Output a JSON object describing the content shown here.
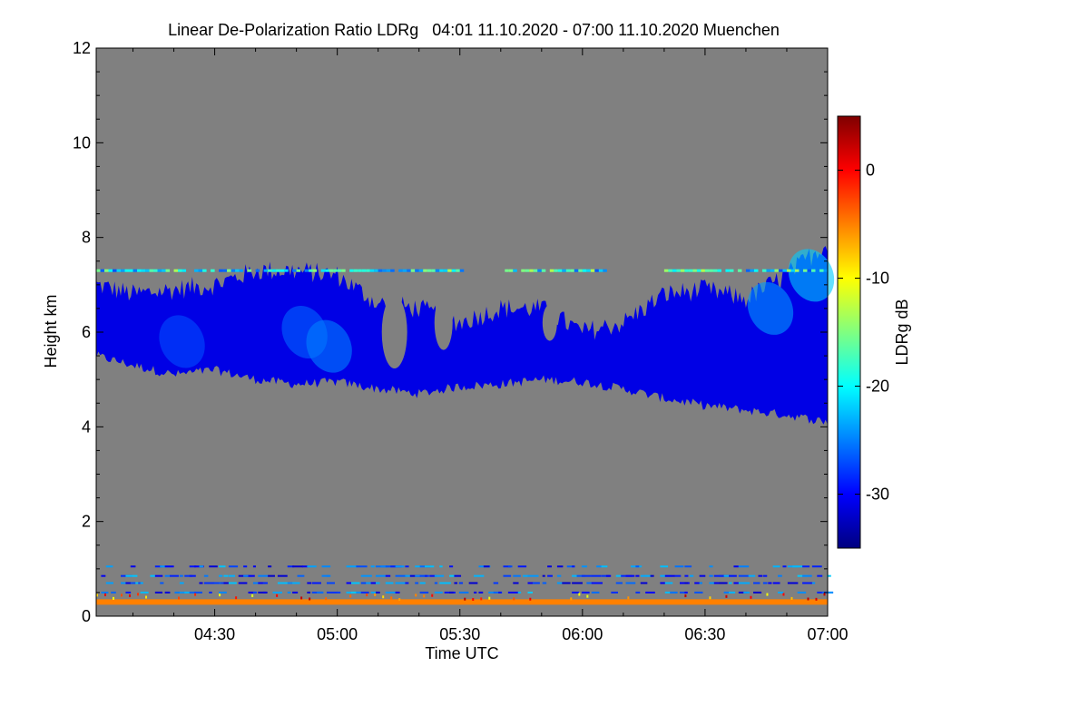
{
  "chart_data": {
    "type": "heatmap",
    "title": "Linear De-Polarization Ratio LDRg   04:01 11.10.2020 - 07:00 11.10.2020 Muenchen",
    "xlabel": "Time UTC",
    "ylabel": "Height km",
    "x_range_min": [
      241,
      420
    ],
    "y_range_km": [
      0,
      12
    ],
    "x_ticks": [
      {
        "min": 270,
        "label": "04:30"
      },
      {
        "min": 300,
        "label": "05:00"
      },
      {
        "min": 330,
        "label": "05:30"
      },
      {
        "min": 360,
        "label": "06:00"
      },
      {
        "min": 390,
        "label": "06:30"
      },
      {
        "min": 420,
        "label": "07:00"
      }
    ],
    "y_ticks": [
      {
        "value": 0,
        "label": "0"
      },
      {
        "value": 2,
        "label": "2"
      },
      {
        "value": 4,
        "label": "4"
      },
      {
        "value": 6,
        "label": "6"
      },
      {
        "value": 8,
        "label": "8"
      },
      {
        "value": 10,
        "label": "10"
      },
      {
        "value": 12,
        "label": "12"
      }
    ],
    "colorbar": {
      "label": "LDRg dB",
      "range": [
        -35,
        5
      ],
      "ticks": [
        {
          "value": 0,
          "label": "0"
        },
        {
          "value": -10,
          "label": "-10"
        },
        {
          "value": -20,
          "label": "-20"
        },
        {
          "value": -30,
          "label": "-30"
        }
      ],
      "colormap": [
        "#00007f",
        "#0000ff",
        "#0080ff",
        "#00ffff",
        "#80ff80",
        "#ffff00",
        "#ff8000",
        "#ff0000",
        "#7f0000"
      ]
    },
    "missing_color": "#808080",
    "features": {
      "cirrus_layer": {
        "ldr_db": -31,
        "base_km": [
          [
            241,
            5.5
          ],
          [
            250,
            5.3
          ],
          [
            260,
            5.1
          ],
          [
            270,
            5.2
          ],
          [
            280,
            5.0
          ],
          [
            290,
            4.9
          ],
          [
            300,
            4.95
          ],
          [
            310,
            4.8
          ],
          [
            320,
            4.7
          ],
          [
            330,
            4.85
          ],
          [
            340,
            4.9
          ],
          [
            350,
            5.0
          ],
          [
            360,
            4.95
          ],
          [
            370,
            4.8
          ],
          [
            380,
            4.6
          ],
          [
            390,
            4.45
          ],
          [
            400,
            4.35
          ],
          [
            410,
            4.25
          ],
          [
            420,
            4.1
          ]
        ],
        "top_km": [
          [
            241,
            7.0
          ],
          [
            250,
            6.8
          ],
          [
            260,
            6.9
          ],
          [
            270,
            7.0
          ],
          [
            280,
            7.3
          ],
          [
            290,
            7.3
          ],
          [
            300,
            7.2
          ],
          [
            310,
            6.6
          ],
          [
            320,
            6.5
          ],
          [
            330,
            6.2
          ],
          [
            340,
            6.5
          ],
          [
            350,
            6.5
          ],
          [
            360,
            6.0
          ],
          [
            370,
            6.2
          ],
          [
            380,
            6.8
          ],
          [
            390,
            6.9
          ],
          [
            400,
            6.7
          ],
          [
            410,
            7.2
          ],
          [
            420,
            7.9
          ]
        ]
      },
      "artifact_line": {
        "height_km": 7.3,
        "ldr_db": -20
      },
      "surface_layer": {
        "height_km": 0.3,
        "ldr_db": -5
      },
      "low_speckle_rows_km": [
        0.5,
        0.7,
        0.85,
        1.05
      ]
    }
  }
}
